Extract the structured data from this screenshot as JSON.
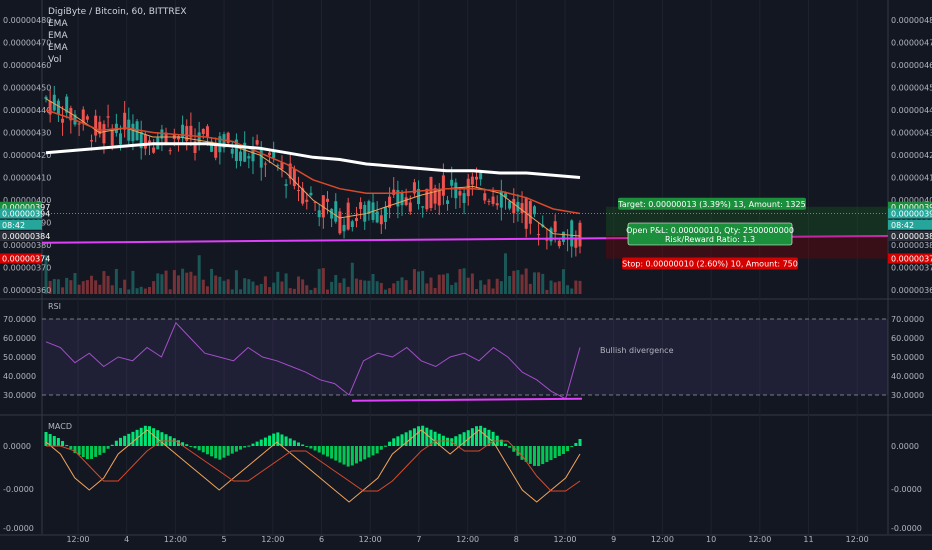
{
  "header": {
    "symbol_line": "DigiByte / Bitcoin, 60, BITTREX",
    "indicators": [
      "EMA",
      "EMA",
      "EMA",
      "Vol"
    ]
  },
  "colors": {
    "background": "#131722",
    "up": "#26a69a",
    "down": "#ef5350",
    "ema_fast": "#f3a35a",
    "ema_mid": "#d84a2b",
    "ema_slow": "#ffffff",
    "trendline": "#e040fb",
    "rsi_line": "#a34ec9",
    "macd_hist_pos": "#00e676",
    "macd_hist_neg": "#00c853",
    "macd_line": "#f3a35a",
    "signal_line": "#d84a2b",
    "target_box": "#1b8f3c",
    "stop_box": "#d50000"
  },
  "price_axis": {
    "labels": [
      "0.00000480",
      "0.00000470",
      "0.00000460",
      "0.00000450",
      "0.00000440",
      "0.00000430",
      "0.00000420",
      "0.00000410",
      "0.00000400",
      "0.00000390",
      "0.00000380",
      "0.00000370",
      "0.00000360"
    ],
    "left_badges": [
      {
        "text": "0.00000397",
        "color": "#1b8f3c"
      },
      {
        "text": "0.00000394",
        "color": "#26a69a"
      },
      {
        "text": "08:42",
        "color": "#26a69a"
      },
      {
        "text": "0.00000384",
        "color": "#2a2e39"
      },
      {
        "text": "0.00000374",
        "color": "#d50000"
      }
    ],
    "right_badges": [
      {
        "text": "0.00000397",
        "color": "#1b8f3c"
      },
      {
        "text": "0.00000394",
        "color": "#26a69a"
      },
      {
        "text": "08:42",
        "color": "#26a69a"
      },
      {
        "text": "0.00000384",
        "color": "#2a2e39"
      },
      {
        "text": "0.00000374",
        "color": "#d50000"
      }
    ]
  },
  "position_tool": {
    "target": "Target: 0.00000013 (3.39%) 13, Amount: 1325",
    "pnl_line1": "Open P&L: 0.00000010, Qty: 2500000000",
    "pnl_line2": "Risk/Reward Ratio: 1.3",
    "stop": "Stop: 0.00000010 (2.60%) 10, Amount: 750"
  },
  "rsi": {
    "title": "RSI",
    "labels": [
      "70.0000",
      "60.0000",
      "50.0000",
      "40.0000",
      "30.0000"
    ],
    "annotation": "Bullish divergence"
  },
  "macd": {
    "title": "MACD",
    "labels": [
      "0.0000",
      "-0.0000",
      "-0.0000"
    ]
  },
  "time_axis": {
    "labels": [
      "12:00",
      "4",
      "12:00",
      "5",
      "12:00",
      "6",
      "12:00",
      "7",
      "12:00",
      "8",
      "12:00",
      "9",
      "12:00",
      "10",
      "12:00",
      "11",
      "12:00"
    ]
  },
  "chart_data": {
    "type": "line",
    "title": "DigiByte / Bitcoin, 60, BITTREX",
    "price_ylim": [
      3.6e-06,
      4.8e-06
    ],
    "series": [
      {
        "name": "EMA",
        "values": [
          4.45e-06,
          4.38e-06,
          4.3e-06,
          4.32e-06,
          4.28e-06,
          4.28e-06,
          4.26e-06,
          4.24e-06,
          4.2e-06,
          4.12e-06,
          4e-06,
          3.92e-06,
          3.94e-06,
          3.98e-06,
          4.02e-06,
          4.05e-06,
          4.06e-06,
          4.03e-06,
          3.94e-06,
          3.85e-06,
          3.84e-06
        ]
      },
      {
        "name": "EMA",
        "values": [
          4.4e-06,
          4.36e-06,
          4.31e-06,
          4.32e-06,
          4.3e-06,
          4.29e-06,
          4.28e-06,
          4.26e-06,
          4.21e-06,
          4.16e-06,
          4.09e-06,
          4.05e-06,
          4.03e-06,
          4.03e-06,
          4.04e-06,
          4.05e-06,
          4.05e-06,
          4.04e-06,
          4.01e-06,
          3.96e-06,
          3.94e-06
        ]
      },
      {
        "name": "EMA",
        "values": [
          4.21e-06,
          4.22e-06,
          4.23e-06,
          4.24e-06,
          4.25e-06,
          4.25e-06,
          4.25e-06,
          4.24e-06,
          4.23e-06,
          4.21e-06,
          4.19e-06,
          4.18e-06,
          4.16e-06,
          4.15e-06,
          4.14e-06,
          4.13e-06,
          4.13e-06,
          4.12e-06,
          4.12e-06,
          4.11e-06,
          4.1e-06
        ]
      }
    ],
    "trendline": {
      "from": 3.81e-06,
      "to": 3.84e-06
    },
    "rsi_values": [
      58,
      55,
      47,
      52,
      45,
      50,
      48,
      55,
      50,
      68,
      60,
      52,
      50,
      48,
      55,
      50,
      48,
      45,
      42,
      38,
      36,
      30,
      48,
      52,
      50,
      55,
      48,
      45,
      50,
      52,
      48,
      55,
      50,
      42,
      38,
      32,
      28,
      55
    ],
    "rsi_ylim": [
      20,
      80
    ],
    "macd_hist": [
      2,
      1,
      -1,
      -2,
      -1,
      1,
      2,
      3,
      2,
      1,
      0,
      -1,
      -2,
      -1,
      0,
      1,
      2,
      1,
      0,
      -1,
      -2,
      -3,
      -2,
      -1,
      1,
      2,
      3,
      2,
      1,
      2,
      3,
      2,
      0,
      -2,
      -3,
      -2,
      -1,
      1
    ],
    "rsi_divergence": {
      "from": 27,
      "to": 28
    }
  }
}
